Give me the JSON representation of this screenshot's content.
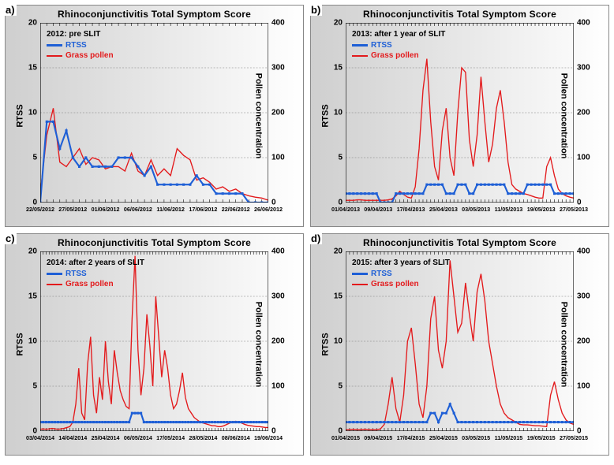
{
  "global": {
    "title": "Rhinoconjunctivitis Total Symptom Score",
    "ylab_left": "RTSS",
    "ylab_right": "Pollen concentration",
    "legend_rtss": "RTSS",
    "legend_pollen": "Grass pollen",
    "rtss_color": "#1e5fd6",
    "pollen_color": "#e31a1c",
    "grid_color": "#7a7a7a",
    "axis_color": "#000000",
    "left_ylim": [
      0,
      20
    ],
    "left_ticks": [
      0,
      5,
      10,
      15,
      20
    ],
    "right_ylim": [
      0,
      400
    ],
    "right_ticks": [
      0,
      100,
      200,
      300,
      400
    ]
  },
  "panels": [
    {
      "letter": "a)",
      "subtitle": "2012: pre SLIT",
      "xdates": [
        "22/05/2012",
        "27/05/2012",
        "01/06/2012",
        "06/06/2012",
        "11/06/2012",
        "17/06/2012",
        "22/06/2012",
        "26/06/2012"
      ],
      "n_days": 36,
      "rtss": [
        0,
        9,
        9,
        6,
        8,
        5,
        4,
        5,
        4,
        4,
        4,
        4,
        5,
        5,
        5,
        4,
        3,
        4,
        2,
        2,
        2,
        2,
        2,
        2,
        3,
        2,
        2,
        1,
        1,
        1,
        1,
        1,
        0,
        0,
        0,
        0
      ],
      "pollen": [
        20,
        150,
        210,
        90,
        80,
        100,
        120,
        85,
        100,
        95,
        75,
        80,
        80,
        70,
        110,
        70,
        60,
        95,
        60,
        75,
        60,
        120,
        105,
        95,
        50,
        55,
        45,
        30,
        35,
        25,
        30,
        20,
        15,
        12,
        10,
        5
      ]
    },
    {
      "letter": "b)",
      "subtitle": "2013: after 1 year of SLIT",
      "xdates": [
        "01/04/2013",
        "09/04/2013",
        "17/04/2013",
        "25/04/2013",
        "03/05/2013",
        "11/05/2013",
        "19/05/2013",
        "27/05/2013"
      ],
      "n_days": 60,
      "rtss": [
        1,
        1,
        1,
        1,
        1,
        1,
        1,
        1,
        1,
        0,
        0,
        0,
        0,
        1,
        1,
        1,
        1,
        1,
        1,
        1,
        1,
        2,
        2,
        2,
        2,
        2,
        1,
        1,
        1,
        2,
        2,
        2,
        1,
        1,
        2,
        2,
        2,
        2,
        2,
        2,
        2,
        2,
        1,
        1,
        1,
        1,
        1,
        2,
        2,
        2,
        2,
        2,
        2,
        2,
        1,
        1,
        1,
        1,
        1,
        1
      ],
      "pollen": [
        5,
        5,
        5,
        6,
        6,
        5,
        5,
        5,
        5,
        5,
        5,
        6,
        8,
        15,
        25,
        18,
        12,
        10,
        35,
        120,
        250,
        320,
        180,
        80,
        50,
        160,
        210,
        100,
        60,
        200,
        300,
        290,
        140,
        80,
        150,
        280,
        180,
        90,
        130,
        210,
        250,
        180,
        90,
        40,
        30,
        25,
        20,
        18,
        15,
        12,
        10,
        10,
        80,
        100,
        60,
        30,
        20,
        15,
        12,
        10
      ]
    },
    {
      "letter": "c)",
      "subtitle": "2014: after 2 years of SLIT",
      "xdates": [
        "03/04/2014",
        "14/04/2014",
        "25/04/2014",
        "06/05/2014",
        "17/05/2014",
        "28/05/2014",
        "08/06/2014",
        "19/06/2014"
      ],
      "n_days": 78,
      "rtss": [
        1,
        1,
        1,
        1,
        1,
        1,
        1,
        1,
        1,
        1,
        1,
        1,
        1,
        1,
        1,
        1,
        1,
        1,
        1,
        1,
        1,
        1,
        1,
        1,
        1,
        1,
        1,
        1,
        1,
        1,
        1,
        2,
        2,
        2,
        2,
        1,
        1,
        1,
        1,
        1,
        1,
        1,
        1,
        1,
        1,
        1,
        1,
        1,
        1,
        1,
        1,
        1,
        1,
        1,
        1,
        1,
        1,
        1,
        1,
        1,
        1,
        1,
        1,
        1,
        1,
        1,
        1,
        1,
        1,
        1,
        1,
        1,
        1,
        1,
        1,
        1,
        1,
        1
      ],
      "pollen": [
        4,
        5,
        4,
        5,
        6,
        5,
        4,
        5,
        6,
        8,
        10,
        20,
        60,
        140,
        40,
        25,
        150,
        210,
        80,
        40,
        120,
        70,
        200,
        110,
        60,
        180,
        130,
        90,
        70,
        55,
        50,
        250,
        390,
        180,
        80,
        140,
        260,
        190,
        100,
        300,
        210,
        120,
        180,
        140,
        80,
        50,
        60,
        90,
        130,
        75,
        50,
        40,
        30,
        25,
        20,
        18,
        16,
        14,
        12,
        12,
        10,
        10,
        12,
        15,
        18,
        20,
        22,
        20,
        18,
        15,
        13,
        12,
        11,
        10,
        10,
        9,
        8,
        8
      ]
    },
    {
      "letter": "d)",
      "subtitle": "2015: after 3 years of SLIT",
      "xdates": [
        "01/04/2015",
        "09/04/2015",
        "17/04/2015",
        "25/04/2015",
        "03/05/2015",
        "11/05/2015",
        "19/05/2015",
        "27/05/2015"
      ],
      "n_days": 60,
      "rtss": [
        1,
        1,
        1,
        1,
        1,
        1,
        1,
        1,
        1,
        1,
        1,
        1,
        1,
        1,
        1,
        1,
        1,
        1,
        1,
        1,
        1,
        1,
        2,
        2,
        1,
        2,
        2,
        3,
        2,
        1,
        1,
        1,
        1,
        1,
        1,
        1,
        1,
        1,
        1,
        1,
        1,
        1,
        1,
        1,
        1,
        1,
        1,
        1,
        1,
        1,
        1,
        1,
        1,
        1,
        1,
        1,
        1,
        1,
        1,
        1
      ],
      "pollen": [
        3,
        3,
        4,
        3,
        3,
        4,
        3,
        3,
        3,
        5,
        15,
        60,
        120,
        50,
        20,
        80,
        200,
        230,
        150,
        60,
        30,
        100,
        250,
        300,
        180,
        140,
        200,
        380,
        300,
        220,
        240,
        330,
        260,
        200,
        310,
        350,
        290,
        200,
        150,
        100,
        60,
        40,
        30,
        25,
        20,
        15,
        14,
        14,
        13,
        12,
        12,
        11,
        10,
        80,
        110,
        70,
        40,
        25,
        18,
        15
      ]
    }
  ]
}
